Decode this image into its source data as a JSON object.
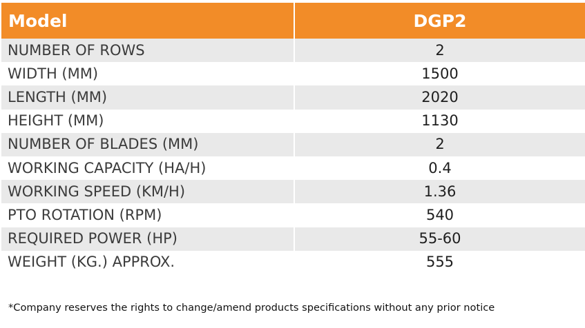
{
  "header": {
    "model_label": "Model",
    "model_value": "DGP2"
  },
  "rows": [
    {
      "label": "NUMBER OF ROWS",
      "value": "2"
    },
    {
      "label": "WIDTH  (MM)",
      "value": "1500"
    },
    {
      "label": "LENGTH (MM)",
      "value": "2020"
    },
    {
      "label": "HEIGHT (MM)",
      "value": "1130"
    },
    {
      "label": "NUMBER OF BLADES (MM)",
      "value": "2"
    },
    {
      "label": "WORKING CAPACITY (HA/H)",
      "value": "0.4"
    },
    {
      "label": "WORKING SPEED (KM/H)",
      "value": "1.36"
    },
    {
      "label": "PTO ROTATION (RPM)",
      "value": "540"
    },
    {
      "label": "REQUIRED POWER (HP)",
      "value": "55-60"
    },
    {
      "label": "WEIGHT (KG.) APPROX.",
      "value": "555"
    }
  ],
  "footnote": "*Company reserves the rights to change/amend products specifications without any prior notice",
  "colors": {
    "header_bg": "#f28c28",
    "header_text": "#ffffff",
    "stripe_bg": "#e9e9e9",
    "text": "#2a2a2a"
  }
}
